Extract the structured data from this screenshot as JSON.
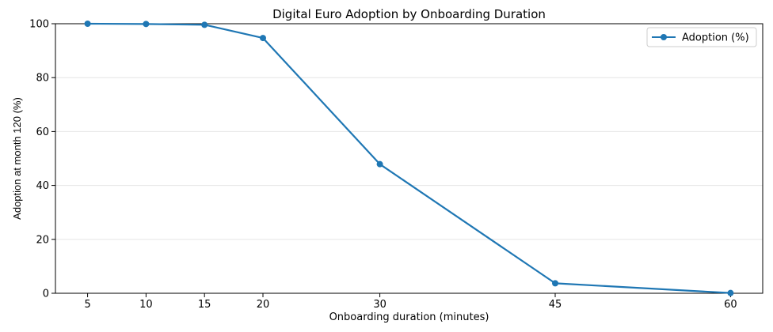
{
  "chart_data": {
    "type": "line",
    "title": "Digital Euro Adoption by Onboarding Duration",
    "xlabel": "Onboarding duration (minutes)",
    "ylabel": "Adoption at month 120 (%)",
    "x": [
      5,
      10,
      15,
      20,
      30,
      45,
      60
    ],
    "series": [
      {
        "name": "Adoption (%)",
        "values": [
          100,
          99.9,
          99.6,
          94.7,
          47.9,
          3.7,
          0.1
        ]
      }
    ],
    "xlim": [
      2.25,
      62.75
    ],
    "ylim": [
      0,
      100
    ],
    "xticks": [
      5,
      10,
      15,
      20,
      30,
      45,
      60
    ],
    "yticks": [
      0,
      20,
      40,
      60,
      80,
      100
    ],
    "grid": "horizontal",
    "legend": "top-right",
    "color": "#1f77b4"
  }
}
